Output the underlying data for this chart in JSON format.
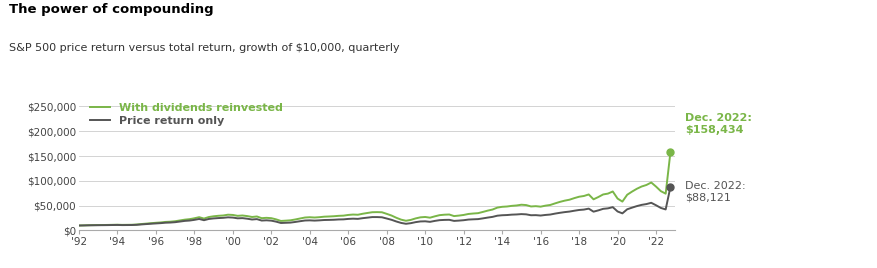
{
  "title": "The power of compounding",
  "subtitle": "S&P 500 price return versus total return, growth of $10,000, quarterly",
  "title_color": "#000000",
  "subtitle_color": "#333333",
  "background_color": "#ffffff",
  "plot_bg_color": "#ffffff",
  "grid_color": "#cccccc",
  "line_color_dividends": "#7ab648",
  "line_color_price": "#555555",
  "dot_color_dividends": "#7ab648",
  "dot_color_price": "#555555",
  "annotation_color_dividends": "#7ab648",
  "annotation_color_price": "#555555",
  "legend_label_dividends": "With dividends reinvested",
  "legend_label_price": "Price return only",
  "ylim": [
    0,
    270000
  ],
  "yticks": [
    0,
    50000,
    100000,
    150000,
    200000,
    250000
  ],
  "ytick_labels": [
    "$0",
    "$50,000",
    "$100,000",
    "$150,000",
    "$200,000",
    "$250,000"
  ],
  "xtick_labels": [
    "'92",
    "'94",
    "'96",
    "'98",
    "'00",
    "'02",
    "'04",
    "'06",
    "'08",
    "'10",
    "'12",
    "'14",
    "'16",
    "'18",
    "'20",
    "'22"
  ],
  "line_width": 1.4,
  "font_size_title": 9.5,
  "font_size_subtitle": 8,
  "font_size_ticks": 7.5,
  "font_size_legend": 8,
  "font_size_annotation": 8,
  "total_return": [
    10000,
    10250,
    10580,
    10760,
    10940,
    11020,
    11180,
    11400,
    11620,
    11280,
    11400,
    11520,
    12050,
    13020,
    13840,
    14700,
    15500,
    16200,
    17250,
    17700,
    18650,
    20200,
    21800,
    22800,
    24600,
    26800,
    24000,
    27100,
    28600,
    29600,
    30200,
    31800,
    31300,
    29500,
    30200,
    29000,
    27200,
    28200,
    24800,
    25500,
    24800,
    22400,
    19200,
    19800,
    20500,
    22200,
    24200,
    26100,
    26700,
    26100,
    26800,
    27800,
    28200,
    28700,
    29500,
    29900,
    31300,
    32100,
    31700,
    33700,
    35300,
    36800,
    37000,
    36700,
    33500,
    30100,
    25600,
    21800,
    19600,
    21300,
    24300,
    26500,
    27200,
    25800,
    28500,
    30900,
    31800,
    32200,
    29000,
    30000,
    31300,
    33300,
    34200,
    34900,
    37400,
    40000,
    42200,
    46100,
    47700,
    48300,
    49600,
    50400,
    51900,
    51200,
    48400,
    49000,
    48000,
    50000,
    51400,
    54600,
    57600,
    60100,
    62000,
    65200,
    68000,
    69500,
    72600,
    62800,
    67400,
    72600,
    74300,
    78600,
    64300,
    58200,
    72000,
    78300,
    84000,
    88600,
    91700,
    96700,
    88400,
    79200,
    74200,
    158434
  ],
  "price_return": [
    10000,
    10180,
    10420,
    10550,
    10650,
    10720,
    10840,
    11000,
    11150,
    10850,
    10950,
    11000,
    11400,
    12200,
    12900,
    13600,
    14200,
    14800,
    15650,
    16000,
    16700,
    18000,
    19300,
    20000,
    21400,
    23200,
    20700,
    23200,
    24300,
    25000,
    25500,
    26500,
    26000,
    24500,
    24900,
    23700,
    22100,
    22900,
    20000,
    20500,
    19800,
    17800,
    15100,
    15500,
    15900,
    17200,
    18700,
    20100,
    20400,
    19900,
    20400,
    21100,
    21300,
    21600,
    22200,
    22400,
    23300,
    23800,
    23400,
    24800,
    25900,
    27000,
    27000,
    26600,
    24100,
    21500,
    18100,
    15200,
    13500,
    14700,
    16800,
    18200,
    18500,
    17400,
    19300,
    20800,
    21300,
    21500,
    19300,
    19900,
    20700,
    22000,
    22500,
    22900,
    24400,
    26000,
    27400,
    29800,
    30700,
    31100,
    31900,
    32300,
    33000,
    32500,
    30700,
    30900,
    30100,
    31300,
    32100,
    34000,
    35600,
    37000,
    38100,
    39800,
    41300,
    42100,
    44000,
    37900,
    40500,
    43600,
    44600,
    47000,
    38300,
    34500,
    42700,
    46000,
    49100,
    51600,
    53200,
    55800,
    50800,
    45400,
    42400,
    88121
  ]
}
